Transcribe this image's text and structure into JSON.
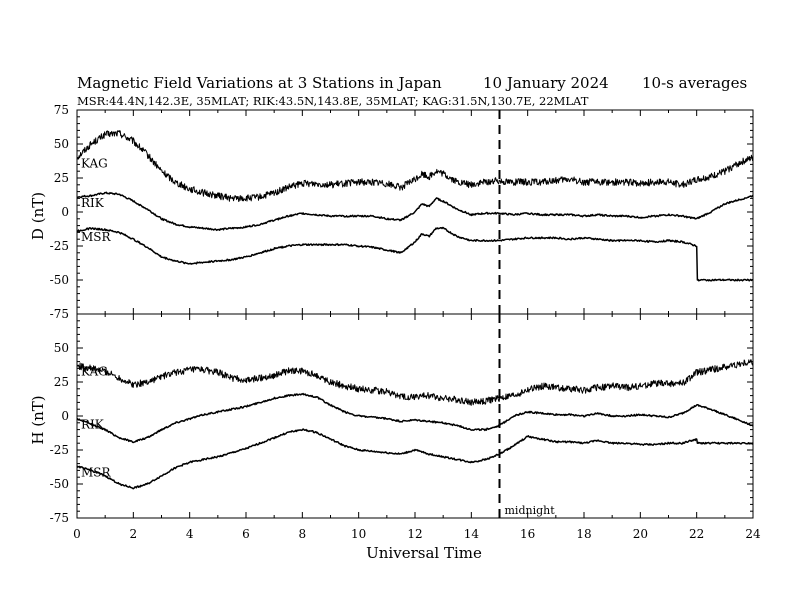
{
  "chart_data": [
    {
      "type": "line",
      "title": "Magnetic Field Variations at 3 Stations in Japan",
      "date": "10 January  2024",
      "averaging": "10-s averages",
      "subtitle": "MSR:44.4N,142.3E, 35MLAT;  RIK:43.5N,143.8E, 35MLAT;  KAG:31.5N,130.7E, 22MLAT",
      "ylabel": "D (nT)",
      "ylim": [
        -75,
        75
      ],
      "yticks": [
        "75",
        "50",
        "25",
        "0",
        "-25",
        "-50",
        "-75"
      ],
      "xlim": [
        0,
        24
      ],
      "annotation": {
        "x": 15,
        "style": "dashed"
      },
      "series": [
        {
          "name": "KAG",
          "noisy": true,
          "x": [
            0,
            0.5,
            1,
            1.5,
            2,
            2.5,
            3,
            3.5,
            4,
            4.5,
            5,
            5.5,
            6,
            6.5,
            7,
            7.5,
            8,
            8.5,
            9,
            9.5,
            10,
            10.5,
            11,
            11.5,
            12,
            12.25,
            12.5,
            12.75,
            13,
            13.5,
            14,
            14.5,
            15,
            15.5,
            16,
            16.5,
            17,
            17.5,
            18,
            18.5,
            19,
            19.5,
            20,
            20.5,
            21,
            21.5,
            22,
            22.5,
            23,
            23.5,
            24
          ],
          "values": [
            40,
            50,
            57,
            58,
            52,
            42,
            30,
            22,
            17,
            14,
            12,
            10,
            10,
            11,
            14,
            18,
            21,
            21,
            20,
            21,
            22,
            22,
            21,
            18,
            24,
            28,
            26,
            30,
            28,
            22,
            20,
            22,
            23,
            22,
            22,
            22,
            23,
            24,
            22,
            22,
            22,
            22,
            21,
            22,
            22,
            20,
            24,
            26,
            30,
            36,
            40
          ]
        },
        {
          "name": "RIK",
          "noisy": false,
          "x": [
            0,
            0.5,
            1,
            1.5,
            2,
            2.5,
            3,
            3.5,
            4,
            4.5,
            5,
            5.5,
            6,
            6.5,
            7,
            7.5,
            8,
            8.5,
            9,
            9.5,
            10,
            10.5,
            11,
            11.5,
            12,
            12.25,
            12.5,
            12.75,
            13,
            13.5,
            14,
            14.5,
            15,
            15.5,
            16,
            16.5,
            17,
            17.5,
            18,
            18.5,
            19,
            19.5,
            20,
            20.5,
            21,
            21.5,
            22,
            22.5,
            23,
            23.5,
            24
          ],
          "values": [
            11,
            12,
            14,
            13,
            8,
            2,
            -5,
            -9,
            -11,
            -12,
            -13,
            -12,
            -11,
            -9,
            -6,
            -3,
            -1,
            -2,
            -3,
            -3,
            -3,
            -3,
            -5,
            -6,
            0,
            6,
            4,
            10,
            8,
            2,
            -2,
            -1,
            -1,
            -2,
            -1,
            -2,
            -2,
            -2,
            -3,
            -2,
            -3,
            -3,
            -4,
            -3,
            -2,
            -3,
            -5,
            0,
            6,
            9,
            12
          ]
        },
        {
          "name": "MSR",
          "noisy": false,
          "x": [
            0,
            0.5,
            1,
            1.5,
            2,
            2.5,
            3,
            3.5,
            4,
            4.5,
            5,
            5.5,
            6,
            6.5,
            7,
            7.5,
            8,
            8.5,
            9,
            9.5,
            10,
            10.5,
            11,
            11.5,
            12,
            12.25,
            12.5,
            12.75,
            13,
            13.5,
            14,
            14.5,
            15,
            15.5,
            16,
            16.5,
            17,
            17.5,
            18,
            18.5,
            19,
            19.5,
            20,
            20.5,
            21,
            21.5,
            22,
            22.01,
            24
          ],
          "values": [
            -14,
            -12,
            -13,
            -15,
            -20,
            -26,
            -33,
            -36,
            -38,
            -37,
            -36,
            -35,
            -33,
            -30,
            -27,
            -25,
            -24,
            -24,
            -24,
            -24,
            -25,
            -26,
            -28,
            -30,
            -22,
            -16,
            -18,
            -12,
            -12,
            -18,
            -21,
            -21,
            -21,
            -20,
            -19,
            -19,
            -19,
            -20,
            -19,
            -20,
            -21,
            -21,
            -21,
            -22,
            -21,
            -22,
            -25,
            -50,
            -50
          ]
        }
      ]
    },
    {
      "type": "line",
      "ylabel": "H (nT)",
      "xlabel": "Universal Time",
      "ylim": [
        -75,
        75
      ],
      "yticks": [
        "50",
        "25",
        "0",
        "-25",
        "-50",
        "-75"
      ],
      "xlim": [
        0,
        24
      ],
      "xticks": [
        "0",
        "2",
        "4",
        "6",
        "8",
        "10",
        "12",
        "14",
        "16",
        "18",
        "20",
        "22",
        "24"
      ],
      "annotation": {
        "x": 15,
        "style": "dashed",
        "label": "midnight"
      },
      "series": [
        {
          "name": "KAG",
          "noisy": true,
          "x": [
            0,
            0.5,
            1,
            1.5,
            2,
            2.5,
            3,
            3.5,
            4,
            4.5,
            5,
            5.5,
            6,
            6.5,
            7,
            7.5,
            8,
            8.5,
            9,
            9.5,
            10,
            10.5,
            11,
            11.5,
            12,
            12.5,
            13,
            13.5,
            14,
            14.5,
            15,
            15.5,
            16,
            16.5,
            17,
            17.5,
            18,
            18.5,
            19,
            19.5,
            20,
            20.5,
            21,
            21.5,
            22,
            22.5,
            23,
            23.5,
            24
          ],
          "values": [
            37,
            35,
            33,
            28,
            23,
            25,
            29,
            32,
            34,
            34,
            32,
            28,
            26,
            28,
            30,
            33,
            33,
            30,
            25,
            22,
            20,
            19,
            18,
            14,
            14,
            15,
            13,
            12,
            10,
            11,
            13,
            15,
            19,
            22,
            21,
            20,
            19,
            21,
            22,
            21,
            22,
            24,
            24,
            24,
            32,
            34,
            36,
            38,
            40
          ]
        },
        {
          "name": "RIK",
          "noisy": false,
          "x": [
            0,
            0.5,
            1,
            1.5,
            2,
            2.5,
            3,
            3.5,
            4,
            4.5,
            5,
            5.5,
            6,
            6.5,
            7,
            7.5,
            8,
            8.5,
            9,
            9.5,
            10,
            10.5,
            11,
            11.5,
            12,
            12.5,
            13,
            13.5,
            14,
            14.5,
            15,
            15.5,
            16,
            16.5,
            17,
            17.5,
            18,
            18.5,
            19,
            19.5,
            20,
            20.5,
            21,
            21.5,
            22,
            22.5,
            23,
            23.5,
            24
          ],
          "values": [
            -2,
            -6,
            -10,
            -16,
            -19,
            -16,
            -10,
            -5,
            -2,
            1,
            3,
            5,
            7,
            10,
            13,
            15,
            16,
            14,
            8,
            3,
            0,
            -1,
            -2,
            -4,
            -3,
            -4,
            -5,
            -7,
            -10,
            -10,
            -7,
            0,
            3,
            2,
            1,
            1,
            0,
            2,
            0,
            0,
            1,
            0,
            -1,
            2,
            8,
            5,
            1,
            -3,
            -7
          ]
        },
        {
          "name": "MSR",
          "noisy": false,
          "x": [
            0,
            0.5,
            1,
            1.5,
            2,
            2.5,
            3,
            3.5,
            4,
            4.5,
            5,
            5.5,
            6,
            6.5,
            7,
            7.5,
            8,
            8.5,
            9,
            9.5,
            10,
            10.5,
            11,
            11.5,
            12,
            12.5,
            13,
            13.5,
            14,
            14.5,
            15,
            15.5,
            16,
            16.5,
            17,
            17.5,
            18,
            18.5,
            19,
            19.5,
            20,
            20.5,
            21,
            21.5,
            22,
            22.01,
            24
          ],
          "values": [
            -37,
            -40,
            -44,
            -50,
            -53,
            -50,
            -44,
            -38,
            -34,
            -32,
            -30,
            -27,
            -24,
            -20,
            -16,
            -12,
            -10,
            -12,
            -17,
            -22,
            -25,
            -26,
            -27,
            -28,
            -25,
            -28,
            -30,
            -32,
            -34,
            -32,
            -28,
            -22,
            -15,
            -17,
            -19,
            -19,
            -20,
            -18,
            -20,
            -20,
            -21,
            -21,
            -20,
            -20,
            -17,
            -20,
            -20
          ]
        }
      ]
    }
  ]
}
